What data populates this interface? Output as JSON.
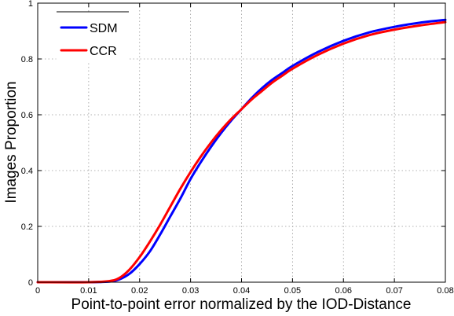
{
  "chart_data": {
    "type": "line",
    "title": "",
    "xlabel": "Point-to-point error normalized by the IOD-Distance",
    "ylabel": "Images Proportion",
    "xlim": [
      0,
      0.08
    ],
    "ylim": [
      0,
      1
    ],
    "grid": true,
    "legend_position": "top-left",
    "x_ticks": [
      "0",
      "0.01",
      "0.02",
      "0.03",
      "0.04",
      "0.05",
      "0.06",
      "0.07",
      "0.08"
    ],
    "y_ticks": [
      "0",
      "0.2",
      "0.4",
      "0.6",
      "0.8",
      "1"
    ],
    "x": [
      0,
      0.01,
      0.014,
      0.016,
      0.018,
      0.02,
      0.022,
      0.024,
      0.026,
      0.028,
      0.03,
      0.032,
      0.034,
      0.036,
      0.038,
      0.04,
      0.042,
      0.044,
      0.046,
      0.048,
      0.05,
      0.055,
      0.06,
      0.065,
      0.07,
      0.075,
      0.08
    ],
    "series": [
      {
        "name": "SDM",
        "color": "#0000ff",
        "values": [
          0,
          0,
          0.002,
          0.01,
          0.03,
          0.065,
          0.11,
          0.17,
          0.235,
          0.3,
          0.37,
          0.43,
          0.485,
          0.535,
          0.58,
          0.62,
          0.66,
          0.695,
          0.725,
          0.75,
          0.775,
          0.825,
          0.865,
          0.895,
          0.915,
          0.93,
          0.94
        ]
      },
      {
        "name": "CCR",
        "color": "#ff0000",
        "values": [
          0,
          0,
          0.004,
          0.015,
          0.045,
          0.09,
          0.145,
          0.205,
          0.27,
          0.335,
          0.395,
          0.45,
          0.5,
          0.545,
          0.585,
          0.62,
          0.655,
          0.685,
          0.715,
          0.74,
          0.765,
          0.815,
          0.855,
          0.885,
          0.905,
          0.92,
          0.932
        ]
      }
    ]
  }
}
